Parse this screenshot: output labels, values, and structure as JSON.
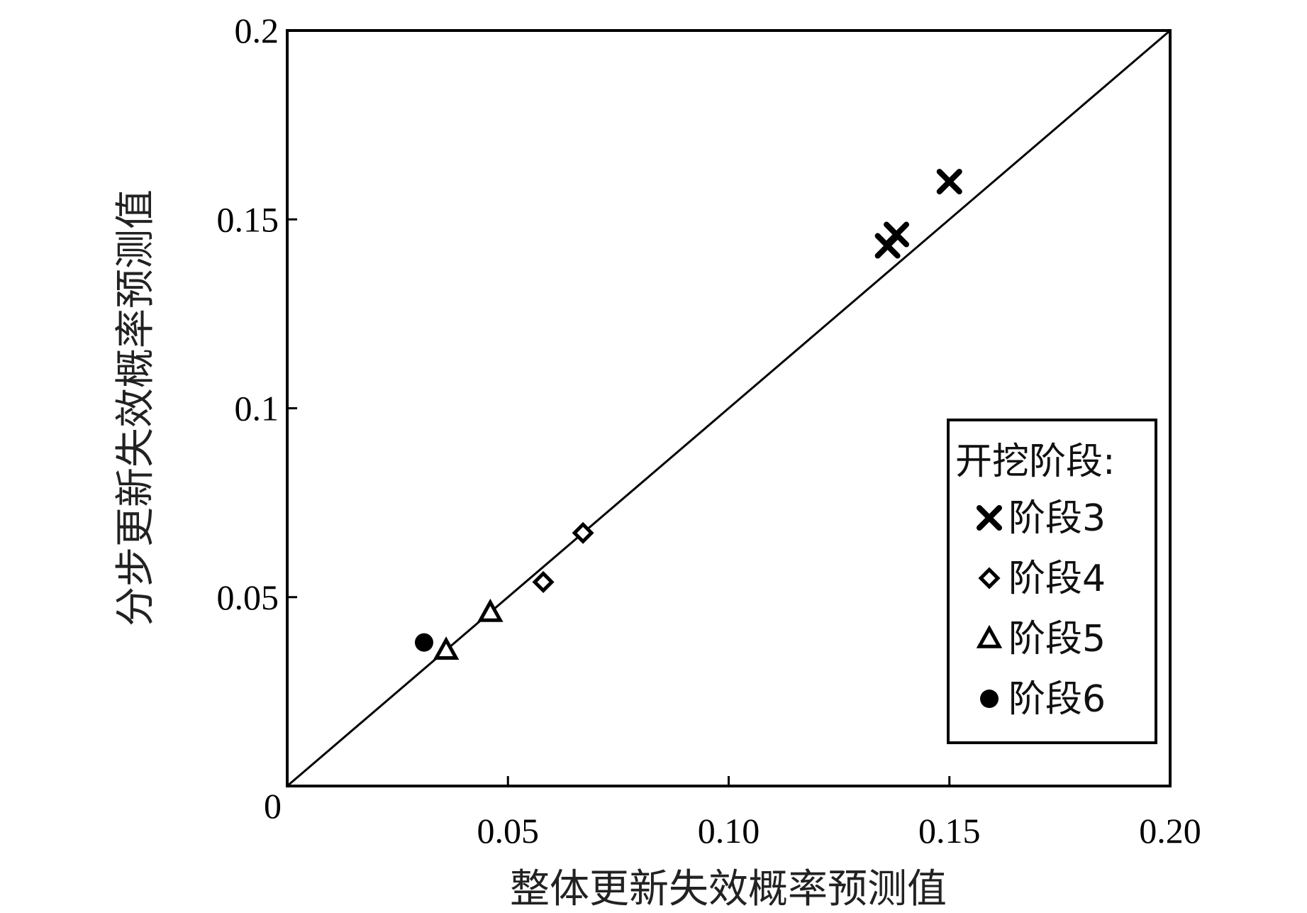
{
  "chart_data": {
    "type": "scatter",
    "title": "",
    "xlabel": "整体更新失效概率预测值",
    "ylabel": "分步更新失效概率预测值",
    "xlim": [
      0,
      0.2
    ],
    "ylim": [
      0,
      0.2
    ],
    "x_ticks": [
      "0",
      "0.05",
      "0.10",
      "0.15",
      "0.20"
    ],
    "x_tick_values": [
      0,
      0.05,
      0.1,
      0.15,
      0.2
    ],
    "y_ticks": [
      "0",
      "0.05",
      "0.1",
      "0.15",
      "0.2"
    ],
    "y_tick_values": [
      0,
      0.05,
      0.1,
      0.15,
      0.2
    ],
    "grid": false,
    "reference_line": {
      "from": [
        0,
        0
      ],
      "to": [
        0.2,
        0.2
      ]
    },
    "legend": {
      "title": "开挖阶段:",
      "position": "bottom-right"
    },
    "series": [
      {
        "name": "阶段3",
        "marker": "x",
        "points": [
          [
            0.136,
            0.143
          ],
          [
            0.138,
            0.146
          ],
          [
            0.15,
            0.16
          ]
        ]
      },
      {
        "name": "阶段4",
        "marker": "diamond",
        "points": [
          [
            0.058,
            0.054
          ],
          [
            0.067,
            0.067
          ]
        ]
      },
      {
        "name": "阶段5",
        "marker": "triangle",
        "points": [
          [
            0.036,
            0.036
          ],
          [
            0.046,
            0.046
          ]
        ]
      },
      {
        "name": "阶段6",
        "marker": "circle",
        "points": [
          [
            0.031,
            0.038
          ]
        ]
      }
    ]
  }
}
